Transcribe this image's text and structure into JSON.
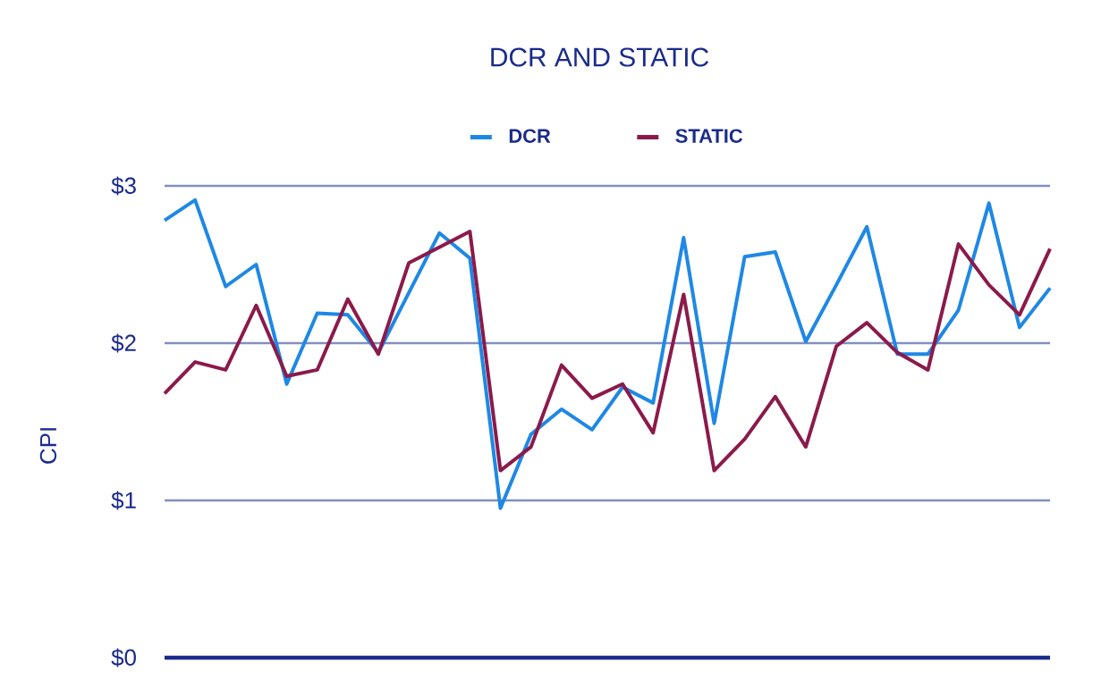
{
  "chart_data": {
    "type": "line",
    "title": "DCR AND STATIC",
    "ylabel": "CPI",
    "categories": [
      null,
      null,
      null,
      null,
      null,
      null,
      null,
      null,
      null,
      null,
      null,
      null,
      null,
      null,
      null,
      null,
      null,
      null,
      null,
      null,
      null,
      null,
      null,
      null,
      null,
      null,
      null,
      null,
      null,
      null
    ],
    "series": [
      {
        "name": "DCR",
        "color": "#1e88e5",
        "values": [
          2.78,
          2.91,
          2.36,
          2.5,
          1.74,
          2.19,
          2.18,
          1.94,
          2.32,
          2.7,
          2.54,
          0.95,
          1.42,
          1.58,
          1.45,
          1.72,
          1.62,
          2.67,
          1.49,
          2.55,
          2.58,
          2.01,
          2.37,
          2.74,
          1.93,
          1.93,
          2.21,
          2.89,
          2.1,
          2.35
        ]
      },
      {
        "name": "STATIC",
        "color": "#8b1a4a",
        "values": [
          1.68,
          1.88,
          1.83,
          2.24,
          1.79,
          1.83,
          2.28,
          1.93,
          2.51,
          2.61,
          2.71,
          1.19,
          1.34,
          1.86,
          1.65,
          1.74,
          1.43,
          2.31,
          1.19,
          1.39,
          1.66,
          1.34,
          1.98,
          2.13,
          1.94,
          1.83,
          2.63,
          2.37,
          2.18,
          2.6
        ]
      }
    ],
    "ylim": [
      0,
      3
    ],
    "yticks": [
      {
        "value": 0,
        "label": "$0"
      },
      {
        "value": 1,
        "label": "$1"
      },
      {
        "value": 2,
        "label": "$2"
      },
      {
        "value": 3,
        "label": "$3"
      }
    ],
    "grid": "y",
    "legend": "top",
    "line_style": "solid"
  }
}
